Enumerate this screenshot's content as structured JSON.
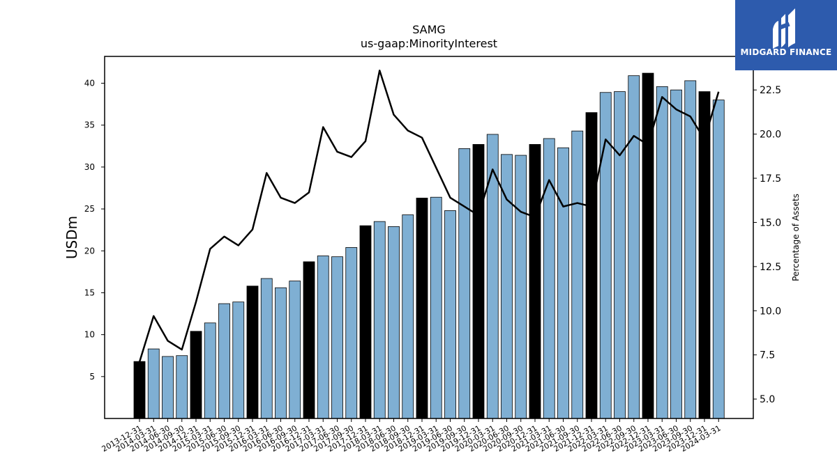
{
  "chart_data": {
    "type": "bar",
    "title": "SAMG",
    "subtitle": "us-gaap:MinorityInterest",
    "ylabel": "USDm",
    "y2label": "Percentage of Assets",
    "ylim": [
      0,
      43.2
    ],
    "y2lim": [
      3.9,
      24.4
    ],
    "yticks": [
      5,
      10,
      15,
      20,
      25,
      30,
      35,
      40
    ],
    "y2ticks": [
      "5.0",
      "7.5",
      "10.0",
      "12.5",
      "15.0",
      "17.5",
      "20.0",
      "22.5"
    ],
    "grid": false,
    "categories": [
      "2013-12-31",
      "2014-03-31",
      "2014-06-30",
      "2014-09-30",
      "2014-12-31",
      "2015-03-31",
      "2015-06-30",
      "2015-09-30",
      "2015-12-31",
      "2016-03-31",
      "2016-06-30",
      "2016-09-30",
      "2016-12-31",
      "2017-03-31",
      "2017-06-30",
      "2017-09-30",
      "2017-12-31",
      "2018-03-31",
      "2018-06-30",
      "2018-09-30",
      "2018-12-31",
      "2019-03-31",
      "2019-06-30",
      "2019-09-30",
      "2019-12-31",
      "2020-03-31",
      "2020-06-30",
      "2020-09-30",
      "2020-12-31",
      "2021-03-31",
      "2021-06-30",
      "2021-09-30",
      "2021-12-31",
      "2022-03-31",
      "2022-06-30",
      "2022-09-30",
      "2022-12-31",
      "2023-03-31",
      "2023-06-30",
      "2023-09-30",
      "2023-12-31",
      "2024-03-31"
    ],
    "series": [
      {
        "type": "bar",
        "values": [
          6.8,
          8.3,
          7.4,
          7.5,
          10.4,
          11.4,
          13.7,
          13.9,
          15.8,
          16.7,
          15.6,
          16.4,
          18.7,
          19.4,
          19.3,
          20.4,
          23.0,
          23.5,
          22.9,
          24.3,
          26.3,
          26.4,
          24.8,
          32.2,
          32.7,
          33.9,
          31.5,
          31.4,
          32.7,
          33.4,
          32.3,
          34.3,
          36.5,
          38.9,
          39.0,
          40.9,
          41.2,
          39.6,
          39.2,
          40.3,
          39.0,
          38.0
        ],
        "annual_color": "#000000",
        "quarter_color": "#7fafd3"
      },
      {
        "type": "line",
        "color": "#000000",
        "values": [
          7.1,
          9.7,
          8.3,
          7.8,
          10.5,
          13.5,
          14.2,
          13.7,
          14.6,
          17.8,
          16.4,
          16.1,
          16.7,
          20.4,
          19.0,
          18.7,
          19.6,
          23.6,
          21.1,
          20.2,
          19.8,
          18.1,
          16.4,
          15.9,
          15.4,
          18.0,
          16.3,
          15.6,
          15.3,
          17.4,
          15.9,
          16.1,
          15.9,
          19.7,
          18.8,
          19.9,
          19.4,
          22.1,
          21.4,
          21.0,
          19.7,
          22.4
        ]
      }
    ]
  },
  "logo": {
    "text": "MIDGARD FINANCE",
    "background": "#2d5bad"
  }
}
